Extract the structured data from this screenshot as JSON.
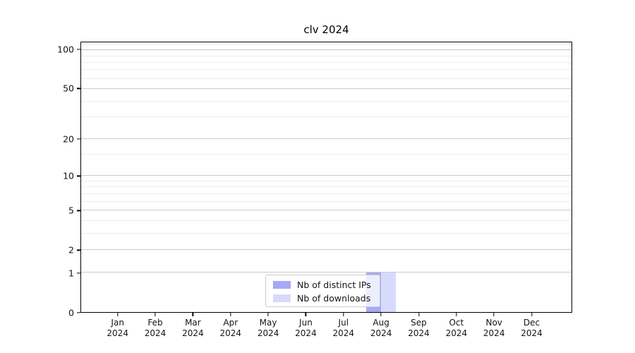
{
  "window": {
    "background": "#ffffff"
  },
  "chart_data": {
    "type": "bar",
    "title": "clv 2024",
    "categories": [
      "Jan 2024",
      "Feb 2024",
      "Mar 2024",
      "Apr 2024",
      "May 2024",
      "Jun 2024",
      "Jul 2024",
      "Aug 2024",
      "Sep 2024",
      "Oct 2024",
      "Nov 2024",
      "Dec 2024"
    ],
    "series": [
      {
        "name": "Nb of distinct IPs",
        "color": "#a6a9f4",
        "values": [
          0,
          0,
          0,
          0,
          0,
          0,
          0,
          1,
          0,
          0,
          0,
          0
        ]
      },
      {
        "name": "Nb of downloads",
        "color": "#d7dafb",
        "values": [
          0,
          0,
          0,
          0,
          0,
          0,
          0,
          1,
          0,
          0,
          0,
          0
        ]
      }
    ],
    "xlabel": "",
    "ylabel": "",
    "yscale": "log1p",
    "ylim": [
      0,
      115
    ],
    "yticks": [
      0,
      1,
      2,
      5,
      10,
      20,
      50,
      100
    ],
    "yticks_minor": [
      3,
      4,
      6,
      7,
      8,
      9,
      15,
      30,
      40,
      60,
      70,
      80,
      90,
      110
    ],
    "grid": true,
    "legend_position": "lower center"
  },
  "styles": {
    "grid_major_color": "#cccccc",
    "grid_top_color": "#c2c2c2",
    "grid_minor_color": "#ededed",
    "axis_color": "#000000",
    "text_color": "#141414",
    "legend_border_color": "#cccccc"
  }
}
